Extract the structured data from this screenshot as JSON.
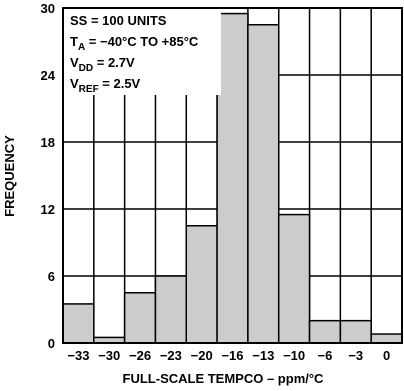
{
  "chart_data": {
    "type": "bar",
    "title": "",
    "xlabel": "FULL-SCALE TEMPCO – ppm/°C",
    "ylabel": "FREQUENCY",
    "ylim": [
      0,
      30
    ],
    "y_ticks": [
      "0",
      "6",
      "12",
      "18",
      "24",
      "30"
    ],
    "x_tick_labels": [
      "−33",
      "−30",
      "−26",
      "−23",
      "−20",
      "−16",
      "−13",
      "−10",
      "−6",
      "−3",
      "0"
    ],
    "grid": true,
    "colors": {
      "bar_fill": "#cccccc",
      "bar_stroke": "#000000",
      "grid": "#000000"
    },
    "values": [
      3.5,
      0.5,
      4.5,
      6,
      10.5,
      29.5,
      28.5,
      11.5,
      2,
      2,
      0.8
    ],
    "annotations": [
      {
        "main": "SS = 100 UNITS"
      },
      {
        "main": "T",
        "sub": "A",
        "rest": " = −40°C TO +85°C"
      },
      {
        "main": "V",
        "sub": "DD",
        "rest": " = 2.7V"
      },
      {
        "main": "V",
        "sub": "REF",
        "rest": " = 2.5V"
      }
    ]
  }
}
